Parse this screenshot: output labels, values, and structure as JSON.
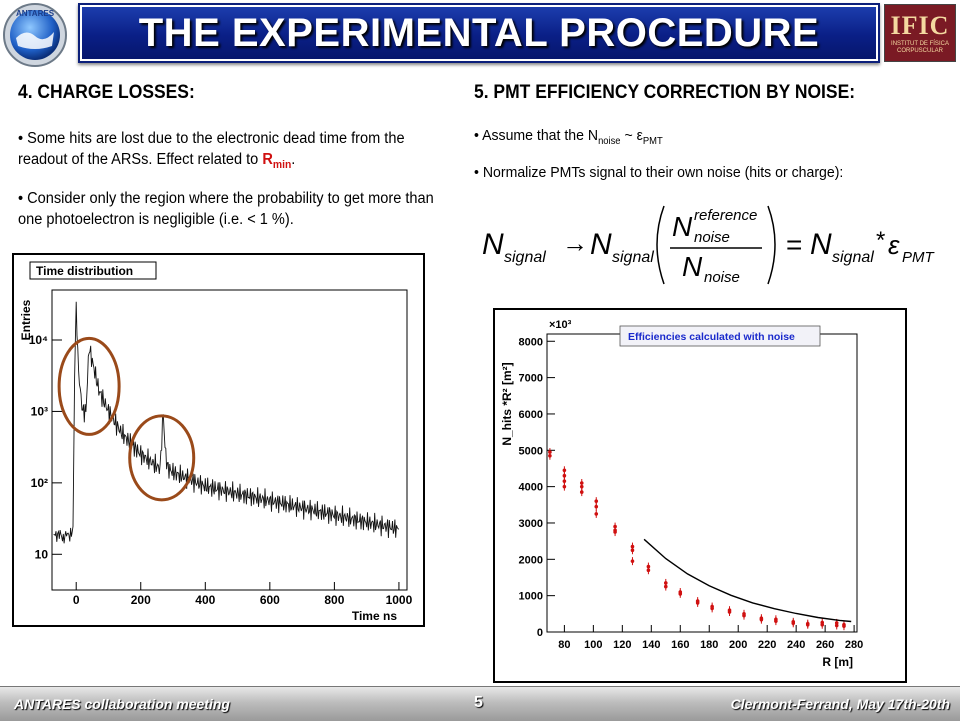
{
  "header": {
    "title": "THE EXPERIMENTAL PROCEDURE",
    "logo_left_text": "ANTARES",
    "logo_right_text": "IFIC",
    "logo_right_subtext": "INSTITUT DE FÍSICA CORPUSCULAR"
  },
  "left": {
    "heading": "4.  CHARGE LOSSES:",
    "p1_a": "• Some hits are lost due to the electronic dead time from the readout of the ARSs. Effect related to ",
    "p1_r": "R",
    "p1_sub": "min",
    "p1_end": ".",
    "p2": "• Consider only the region where the probability to get more than one photoelectron is negligible (i.e. < 1 %)."
  },
  "right": {
    "heading": "5.  PMT EFFICIENCY CORRECTION BY NOISE:",
    "b1_a": "• Assume that the N",
    "b1_sub": "noise",
    "b1_b": " ~ ε",
    "b1_sub2": "PMT",
    "b2": "• Normalize PMTs signal to their own noise (hits or charge):",
    "formula": {
      "n": "N",
      "signal": "signal",
      "arrow": "→",
      "reference": "reference",
      "noise": "noise",
      "equals": "=",
      "star": "*",
      "epsilon": "ε",
      "pmt": "PMT"
    }
  },
  "footer": {
    "left": "ANTARES collaboration meeting",
    "page": "5",
    "right": "Clermont-Ferrand, May 17th-20th"
  },
  "colors": {
    "title_bg": "#0a1f86",
    "circle": "#9a4a1a",
    "points": "#d01010",
    "legend_text": "#1a2acc"
  },
  "chart_data": [
    {
      "type": "line",
      "title": "Time distribution",
      "xlabel": "Time  ns",
      "ylabel": "Entries",
      "xlim": [
        -75,
        1025
      ],
      "ylim_log10": [
        0.5,
        4.7
      ],
      "log_y": true,
      "x_ticks": [
        "0",
        "200",
        "400",
        "600",
        "800",
        "1000"
      ],
      "x_tick_values": [
        0,
        200,
        400,
        600,
        800,
        1000
      ],
      "y_ticks": [
        "10",
        "10²",
        "10³",
        "10⁴"
      ],
      "y_tick_values": [
        1,
        2,
        3,
        4
      ],
      "x": [
        -70,
        -60,
        -50,
        -40,
        -30,
        -20,
        -15,
        -10,
        -5,
        0,
        5,
        10,
        20,
        30,
        40,
        50,
        60,
        70,
        80,
        100,
        120,
        140,
        160,
        180,
        200,
        230,
        260,
        270,
        275,
        280,
        285,
        300,
        350,
        400,
        450,
        500,
        550,
        600,
        650,
        700,
        750,
        800,
        850,
        900,
        950,
        1000
      ],
      "y_log10": [
        1.3,
        1.25,
        1.3,
        1.2,
        1.3,
        1.25,
        1.3,
        1.35,
        3.5,
        4.5,
        3.8,
        3.4,
        3.0,
        3.0,
        3.9,
        3.7,
        3.5,
        3.3,
        3.2,
        3.0,
        2.85,
        2.7,
        2.6,
        2.5,
        2.4,
        2.3,
        2.2,
        3.0,
        2.5,
        2.3,
        2.2,
        2.15,
        2.05,
        1.95,
        1.9,
        1.85,
        1.8,
        1.75,
        1.7,
        1.65,
        1.6,
        1.55,
        1.5,
        1.45,
        1.4,
        1.35
      ],
      "annotations": [
        "circle around 0–100 ns peak region",
        "circle around ~270 ns secondary peak"
      ]
    },
    {
      "type": "scatter",
      "title": "Efficiencies calculated with noise",
      "xlabel": "R [m]",
      "ylabel": "N_hits *R² [m²]",
      "y_multiplier": "×10³",
      "xlim": [
        68,
        282
      ],
      "ylim": [
        0,
        8200
      ],
      "x_ticks": [
        "80",
        "100",
        "120",
        "140",
        "160",
        "180",
        "200",
        "220",
        "240",
        "260",
        "280"
      ],
      "y_ticks": [
        "0",
        "1000",
        "2000",
        "3000",
        "4000",
        "5000",
        "6000",
        "7000",
        "8000"
      ],
      "series": [
        {
          "x": [
            70,
            70,
            80,
            80,
            80,
            80,
            92,
            92,
            92,
            102,
            102,
            102,
            115,
            115,
            115,
            127,
            127,
            127,
            138,
            138,
            150,
            150,
            160,
            160,
            172,
            172,
            182,
            182,
            194,
            194,
            204,
            204,
            216,
            216,
            226,
            226,
            238,
            238,
            248,
            248,
            258,
            258,
            268,
            268,
            273,
            273
          ],
          "y": [
            4950,
            4850,
            4450,
            4300,
            4150,
            4000,
            4100,
            4000,
            3850,
            3600,
            3450,
            3250,
            2900,
            2800,
            2750,
            2250,
            1950,
            2350,
            1800,
            1700,
            1350,
            1250,
            1100,
            1050,
            850,
            800,
            700,
            650,
            600,
            550,
            500,
            450,
            380,
            340,
            350,
            300,
            280,
            240,
            230,
            200,
            260,
            200,
            250,
            180,
            200,
            160
          ]
        }
      ],
      "fit": {
        "x": [
          135,
          150,
          165,
          180,
          195,
          210,
          225,
          240,
          255,
          270,
          278
        ],
        "y": [
          2550,
          2020,
          1600,
          1270,
          1010,
          800,
          640,
          510,
          400,
          320,
          290
        ]
      }
    }
  ]
}
